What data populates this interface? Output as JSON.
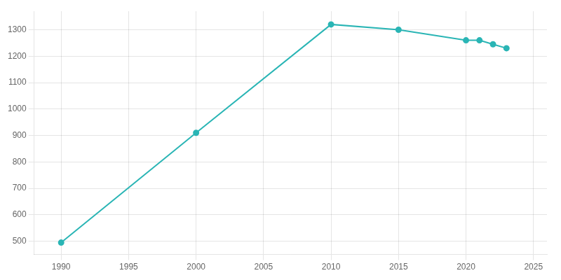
{
  "chart_data": {
    "type": "line",
    "x": [
      1990,
      2000,
      2010,
      2015,
      2020,
      2021,
      2022,
      2023
    ],
    "values": [
      495,
      910,
      1320,
      1300,
      1260,
      1260,
      1245,
      1230
    ],
    "color": "#2ab5b5",
    "marker": "circle",
    "xlim": [
      1988,
      2026
    ],
    "ylim": [
      450,
      1370
    ],
    "xticks": [
      1990,
      1995,
      2000,
      2005,
      2010,
      2015,
      2020,
      2025
    ],
    "yticks": [
      500,
      600,
      700,
      800,
      900,
      1000,
      1100,
      1200,
      1300
    ],
    "grid": true
  }
}
